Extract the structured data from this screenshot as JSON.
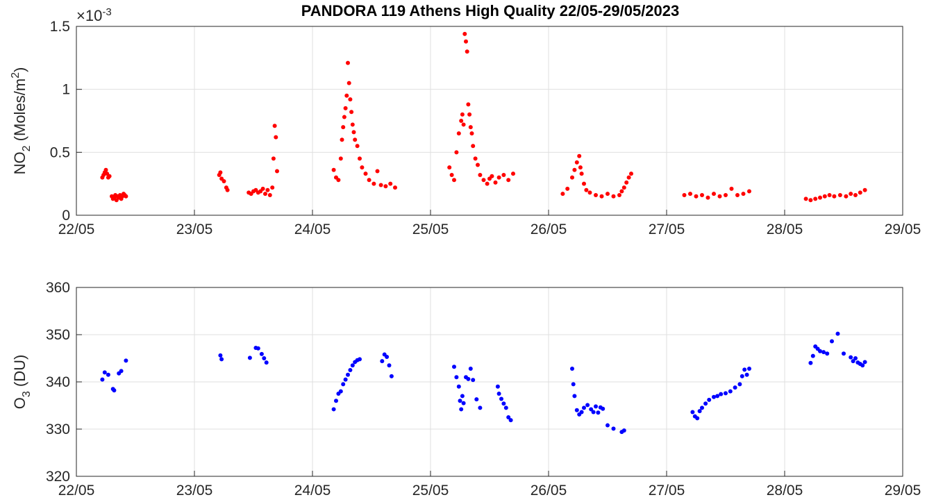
{
  "chart_data": [
    {
      "type": "scatter",
      "title": "PANDORA 119 Athens High Quality 22/05-29/05/2023",
      "ylabel_main": "NO",
      "ylabel_sub": "2",
      "ylabel_rest": " (Moles/m",
      "ylabel_sup": "2",
      "ylabel_end": ")",
      "exponent_label": "×10",
      "exponent_value": "-3",
      "xlim": [
        0,
        7
      ],
      "xticks": [
        0,
        1,
        2,
        3,
        4,
        5,
        6,
        7
      ],
      "xtick_labels": [
        "22/05",
        "23/05",
        "24/05",
        "25/05",
        "26/05",
        "27/05",
        "28/05",
        "29/05"
      ],
      "ylim": [
        0,
        1.5
      ],
      "yticks": [
        0,
        0.5,
        1,
        1.5
      ],
      "ytick_labels": [
        "0",
        "0.5",
        "1",
        "1.5"
      ],
      "grid": true,
      "color": "#ff0000",
      "series": [
        {
          "x": [
            0.22,
            0.23,
            0.24,
            0.25,
            0.26,
            0.27,
            0.28,
            0.3,
            0.31,
            0.32,
            0.33,
            0.34,
            0.35,
            0.36,
            0.37,
            0.38,
            0.39,
            0.4,
            0.41,
            0.42,
            1.21,
            1.22,
            1.23,
            1.25,
            1.27,
            1.28,
            1.46,
            1.48,
            1.5,
            1.52,
            1.54,
            1.56,
            1.58,
            1.6,
            1.62,
            1.64,
            1.66,
            1.67,
            1.68,
            1.69,
            1.7,
            2.18,
            2.2,
            2.22,
            2.24,
            2.25,
            2.26,
            2.27,
            2.28,
            2.29,
            2.3,
            2.31,
            2.32,
            2.33,
            2.34,
            2.35,
            2.36,
            2.38,
            2.4,
            2.42,
            2.45,
            2.48,
            2.52,
            2.55,
            2.58,
            2.62,
            2.66,
            2.7,
            3.16,
            3.18,
            3.2,
            3.22,
            3.24,
            3.26,
            3.27,
            3.28,
            3.29,
            3.3,
            3.31,
            3.32,
            3.33,
            3.34,
            3.35,
            3.36,
            3.38,
            3.4,
            3.42,
            3.45,
            3.48,
            3.5,
            3.52,
            3.55,
            3.58,
            3.62,
            3.66,
            3.7,
            4.12,
            4.16,
            4.2,
            4.22,
            4.24,
            4.26,
            4.27,
            4.28,
            4.3,
            4.32,
            4.35,
            4.4,
            4.45,
            4.5,
            4.55,
            4.6,
            4.62,
            4.64,
            4.66,
            4.68,
            4.7,
            5.15,
            5.2,
            5.25,
            5.3,
            5.35,
            5.4,
            5.45,
            5.5,
            5.55,
            5.6,
            5.65,
            5.7,
            6.18,
            6.22,
            6.26,
            6.3,
            6.34,
            6.38,
            6.42,
            6.47,
            6.52,
            6.56,
            6.6,
            6.64,
            6.68
          ],
          "y": [
            0.3,
            0.32,
            0.34,
            0.36,
            0.33,
            0.3,
            0.31,
            0.15,
            0.13,
            0.14,
            0.16,
            0.12,
            0.15,
            0.14,
            0.16,
            0.13,
            0.15,
            0.17,
            0.16,
            0.15,
            0.32,
            0.34,
            0.29,
            0.27,
            0.22,
            0.2,
            0.18,
            0.17,
            0.19,
            0.2,
            0.18,
            0.19,
            0.21,
            0.17,
            0.2,
            0.16,
            0.22,
            0.45,
            0.71,
            0.62,
            0.35,
            0.36,
            0.3,
            0.28,
            0.45,
            0.6,
            0.7,
            0.78,
            0.85,
            0.95,
            1.21,
            1.05,
            0.92,
            0.82,
            0.72,
            0.66,
            0.6,
            0.55,
            0.45,
            0.38,
            0.33,
            0.28,
            0.25,
            0.35,
            0.24,
            0.23,
            0.25,
            0.22,
            0.38,
            0.32,
            0.28,
            0.5,
            0.65,
            0.75,
            0.8,
            0.72,
            1.44,
            1.38,
            1.3,
            0.88,
            0.8,
            0.7,
            0.65,
            0.55,
            0.45,
            0.4,
            0.32,
            0.28,
            0.25,
            0.29,
            0.31,
            0.26,
            0.3,
            0.32,
            0.28,
            0.33,
            0.17,
            0.21,
            0.3,
            0.36,
            0.42,
            0.47,
            0.38,
            0.33,
            0.25,
            0.2,
            0.18,
            0.16,
            0.15,
            0.17,
            0.15,
            0.16,
            0.19,
            0.22,
            0.26,
            0.3,
            0.33,
            0.16,
            0.17,
            0.15,
            0.16,
            0.14,
            0.17,
            0.15,
            0.16,
            0.21,
            0.16,
            0.17,
            0.19,
            0.13,
            0.12,
            0.13,
            0.14,
            0.15,
            0.16,
            0.15,
            0.16,
            0.15,
            0.17,
            0.16,
            0.18,
            0.2
          ]
        }
      ]
    },
    {
      "type": "scatter",
      "ylabel_main": "O",
      "ylabel_sub": "3",
      "ylabel_end": " (DU)",
      "xlim": [
        0,
        7
      ],
      "xticks": [
        0,
        1,
        2,
        3,
        4,
        5,
        6,
        7
      ],
      "xtick_labels": [
        "22/05",
        "23/05",
        "24/05",
        "25/05",
        "26/05",
        "27/05",
        "28/05",
        "29/05"
      ],
      "ylim": [
        320,
        360
      ],
      "yticks": [
        320,
        330,
        340,
        350,
        360
      ],
      "ytick_labels": [
        "320",
        "330",
        "340",
        "350",
        "360"
      ],
      "grid": true,
      "color": "#0000ff",
      "series": [
        {
          "x": [
            0.22,
            0.24,
            0.27,
            0.31,
            0.32,
            0.36,
            0.38,
            0.42,
            1.22,
            1.23,
            1.47,
            1.52,
            1.54,
            1.57,
            1.59,
            1.61,
            2.18,
            2.2,
            2.22,
            2.24,
            2.26,
            2.28,
            2.3,
            2.32,
            2.34,
            2.36,
            2.38,
            2.4,
            2.59,
            2.61,
            2.63,
            2.65,
            2.67,
            3.2,
            3.22,
            3.24,
            3.25,
            3.26,
            3.27,
            3.28,
            3.3,
            3.32,
            3.34,
            3.36,
            3.39,
            3.42,
            3.57,
            3.58,
            3.6,
            3.62,
            3.64,
            3.66,
            3.68,
            4.2,
            4.21,
            4.22,
            4.24,
            4.26,
            4.28,
            4.3,
            4.33,
            4.36,
            4.38,
            4.4,
            4.42,
            4.44,
            4.46,
            4.5,
            4.55,
            4.62,
            4.64,
            5.22,
            5.24,
            5.26,
            5.28,
            5.3,
            5.33,
            5.36,
            5.4,
            5.43,
            5.46,
            5.5,
            5.54,
            5.58,
            5.62,
            5.64,
            5.66,
            5.68,
            5.7,
            6.22,
            6.24,
            6.26,
            6.28,
            6.3,
            6.33,
            6.36,
            6.4,
            6.45,
            6.5,
            6.56,
            6.58,
            6.6,
            6.62,
            6.64,
            6.66,
            6.68
          ],
          "y": [
            340.5,
            342.0,
            341.5,
            338.5,
            338.2,
            341.8,
            342.3,
            344.5,
            345.6,
            344.8,
            345.1,
            347.2,
            347.1,
            345.9,
            345.0,
            344.1,
            334.2,
            336.0,
            337.5,
            338.0,
            339.5,
            340.5,
            341.5,
            342.5,
            343.5,
            344.2,
            344.6,
            344.8,
            344.4,
            345.8,
            345.3,
            343.5,
            341.2,
            343.2,
            341.0,
            339.0,
            336.0,
            334.2,
            337.0,
            335.5,
            341.0,
            340.6,
            342.8,
            340.4,
            336.3,
            334.5,
            339.0,
            337.5,
            336.4,
            335.4,
            334.5,
            332.5,
            331.9,
            342.8,
            339.5,
            337.0,
            334.0,
            333.1,
            333.6,
            334.5,
            335.1,
            334.2,
            333.6,
            334.8,
            333.5,
            334.6,
            334.3,
            330.8,
            330.1,
            329.4,
            329.7,
            333.6,
            332.7,
            332.3,
            333.8,
            334.5,
            335.4,
            336.2,
            336.8,
            337.0,
            337.4,
            337.6,
            338.0,
            338.8,
            339.5,
            341.2,
            342.6,
            341.5,
            342.8,
            344.0,
            345.5,
            347.5,
            347.0,
            346.5,
            346.3,
            346.0,
            348.6,
            350.2,
            346.0,
            345.2,
            344.4,
            345.0,
            344.1,
            343.8,
            343.5,
            344.2
          ]
        }
      ]
    }
  ]
}
